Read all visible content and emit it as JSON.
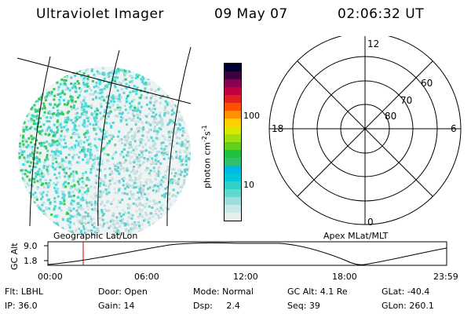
{
  "header": {
    "instrument": "Ultraviolet Imager",
    "date": "09 May 07",
    "time": "02:06:32 UT"
  },
  "colorbar": {
    "unit_label": "photon cm",
    "unit_sup1": "-2",
    "unit_mid": "s",
    "unit_sup2": "-1",
    "tick_high": "100",
    "tick_low": "10",
    "colors": [
      "#e8eeee",
      "#c8e8e8",
      "#a0dcdc",
      "#60d8d0",
      "#30d0c8",
      "#00c8d8",
      "#00b8e0",
      "#30c070",
      "#20c040",
      "#60d020",
      "#a0e010",
      "#d8e800",
      "#ffd000",
      "#ff9000",
      "#ff5000",
      "#e02020",
      "#c00040",
      "#8a0050",
      "#400040",
      "#000030"
    ]
  },
  "polar_plot": {
    "label_top": "12",
    "label_left": "18",
    "label_right": "6",
    "label_bottom": "0",
    "lat_60": "60",
    "lat_70": "70",
    "lat_80": "80"
  },
  "altitude_panel": {
    "left_label": "Geographic Lat/Lon",
    "right_label": "Apex MLat/MLT",
    "axis_title": "GC Alt",
    "y_top": "9.0",
    "y_bottom": "1.8",
    "x_ticks": [
      "00:00",
      "06:00",
      "12:00",
      "18:00",
      "23:59"
    ]
  },
  "info": {
    "flt": "Flt: LBHL",
    "ip": "IP: 36.0",
    "door": "Door: Open",
    "gain": "Gain: 14",
    "mode": "Mode: Normal",
    "dsp": "Dsp:     2.4",
    "gc_alt": "GC Alt: 4.1 Re",
    "seq": "Seq: 39",
    "glat": "GLat: -40.4",
    "glon": "GLon: 260.1"
  },
  "accent_colors": {
    "current_time_marker": "#cc0000"
  }
}
